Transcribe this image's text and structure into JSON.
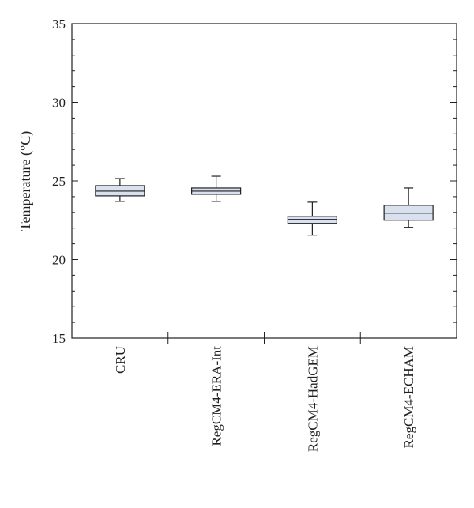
{
  "chart_data": {
    "type": "box",
    "ylabel": "Temperature (°C)",
    "ylim": [
      15,
      35
    ],
    "y_ticks": [
      15,
      20,
      25,
      30,
      35
    ],
    "y_minor_step": 1,
    "grid": false,
    "box_color": "#d9e1ef",
    "categories": [
      "CRU",
      "RegCM4-ERA-Int",
      "RegCM4-HadGEM",
      "RegCM4-ECHAM"
    ],
    "boxes": [
      {
        "min": 23.7,
        "q1": 24.05,
        "median": 24.35,
        "q3": 24.7,
        "max": 25.15
      },
      {
        "min": 23.7,
        "q1": 24.15,
        "median": 24.35,
        "q3": 24.55,
        "max": 25.3
      },
      {
        "min": 21.55,
        "q1": 22.3,
        "median": 22.55,
        "q3": 22.75,
        "max": 23.65
      },
      {
        "min": 22.05,
        "q1": 22.5,
        "median": 22.95,
        "q3": 23.45,
        "max": 24.55
      }
    ]
  }
}
